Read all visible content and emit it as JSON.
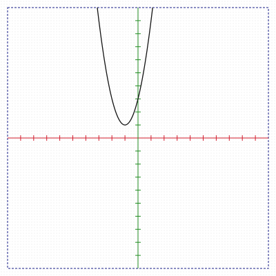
{
  "chart_data": {
    "type": "line",
    "title": "",
    "xlabel": "",
    "ylabel": "",
    "xlim": [
      -10,
      10
    ],
    "ylim": [
      -10,
      10
    ],
    "x_tick_step": 1,
    "y_tick_step": 1,
    "tick_labels": false,
    "grid": false,
    "series": [
      {
        "kind": "function",
        "expression": "2x^2 + 4x + 3",
        "coefficients": {
          "a": 2,
          "b": 4,
          "c": 3
        },
        "vertex": [
          -1,
          1
        ],
        "y_intercept": 3,
        "x_range": [
          -4,
          2
        ]
      }
    ]
  },
  "colors": {
    "x_axis": "#d11a2a",
    "y_axis": "#1f8a1f",
    "curve": "#111111",
    "frame": "#1a1f8a",
    "background_dots": "#e4e4e4"
  }
}
